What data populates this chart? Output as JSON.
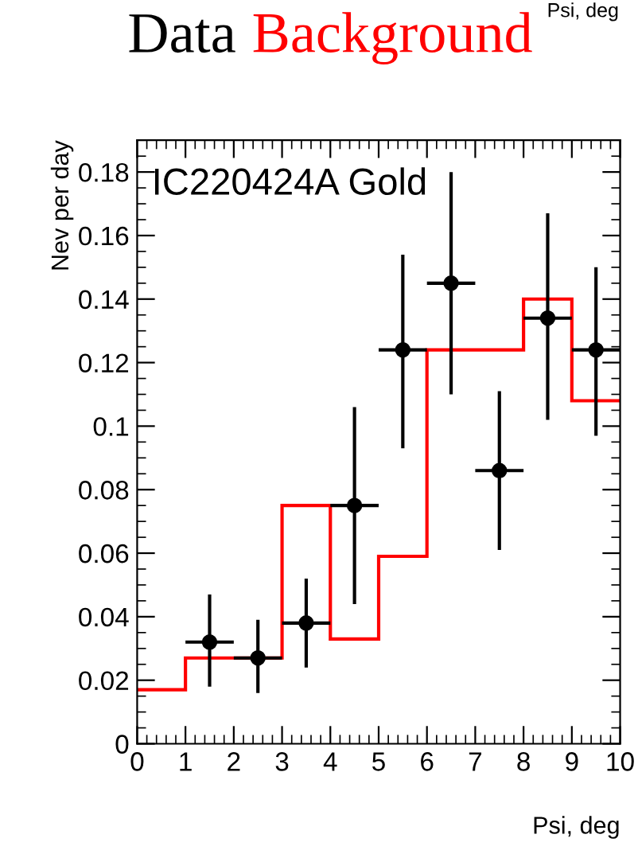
{
  "chart_data": {
    "type": "scatter",
    "xlabel": "Psi, deg",
    "ylabel": "Nev per day",
    "annotations": [
      "IC220424A Gold",
      "Psi, deg"
    ],
    "xlim": [
      0,
      10
    ],
    "xticks": [
      0,
      1,
      2,
      3,
      4,
      5,
      6,
      7,
      8,
      9,
      10
    ],
    "ylim": [
      0,
      0.19
    ],
    "yticks": [
      0,
      0.02,
      0.04,
      0.06,
      0.08,
      0.1,
      0.12,
      0.14,
      0.16,
      0.18
    ],
    "legend": "top",
    "grid": false,
    "marker": "circle",
    "series": [
      {
        "name": "Data",
        "type": "scatter",
        "color": "#000000",
        "x": [
          1.5,
          2.5,
          3.5,
          4.5,
          5.5,
          6.5,
          7.5,
          8.5,
          9.5
        ],
        "values": [
          0.032,
          0.027,
          0.038,
          0.075,
          0.124,
          0.145,
          0.086,
          0.134,
          0.124
        ],
        "xerrors": [
          0.5,
          0.5,
          0.5,
          0.5,
          0.5,
          0.5,
          0.5,
          0.5,
          0.5
        ],
        "errors": [
          [
            0.018,
            0.047
          ],
          [
            0.016,
            0.039
          ],
          [
            0.024,
            0.052
          ],
          [
            0.044,
            0.106
          ],
          [
            0.093,
            0.154
          ],
          [
            0.11,
            0.18
          ],
          [
            0.061,
            0.111
          ],
          [
            0.102,
            0.167
          ],
          [
            0.097,
            0.15
          ]
        ]
      },
      {
        "name": "Background",
        "type": "histogram",
        "color": "#ff0000",
        "bins": [
          0,
          1,
          2,
          3,
          4,
          5,
          6,
          7,
          8,
          9,
          10
        ],
        "values": [
          0.017,
          0.027,
          0.027,
          0.075,
          0.033,
          0.059,
          0.124,
          0.124,
          0.14,
          0.108
        ]
      }
    ]
  }
}
